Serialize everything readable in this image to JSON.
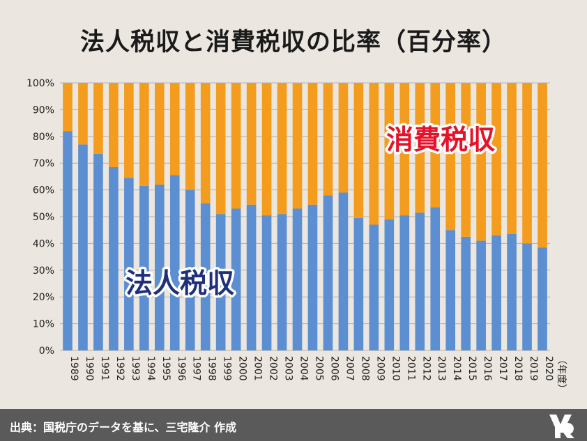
{
  "chart_data": {
    "type": "bar",
    "stacked": true,
    "title": "法人税収と消費税収の比率（百分率）",
    "xlabel": "（年度）",
    "ylabel": "",
    "ylim": [
      0,
      100
    ],
    "y_ticks": [
      "0%",
      "10%",
      "20%",
      "30%",
      "40%",
      "50%",
      "60%",
      "70%",
      "80%",
      "90%",
      "100%"
    ],
    "grid": true,
    "categories": [
      "1989",
      "1990",
      "1991",
      "1992",
      "1993",
      "1994",
      "1995",
      "1996",
      "1997",
      "1998",
      "1999",
      "2000",
      "2001",
      "2002",
      "2003",
      "2004",
      "2005",
      "2006",
      "2007",
      "2008",
      "2009",
      "2010",
      "2011",
      "2012",
      "2013",
      "2014",
      "2015",
      "2016",
      "2017",
      "2018",
      "2019",
      "2020"
    ],
    "series": [
      {
        "name": "法人税収",
        "color": "#5b8fd1",
        "values": [
          82,
          77,
          73.5,
          68.5,
          64.5,
          61.5,
          62,
          65.5,
          60,
          55,
          51,
          53,
          54.5,
          50.5,
          51,
          53,
          54.5,
          58,
          59,
          49.5,
          47,
          49,
          50.5,
          51.5,
          53.5,
          45,
          42.5,
          41,
          43,
          43.5,
          40,
          38.5
        ]
      },
      {
        "name": "消費税収",
        "color": "#f39c1d",
        "values": [
          18,
          23,
          26.5,
          31.5,
          35.5,
          38.5,
          38,
          34.5,
          40,
          45,
          49,
          47,
          45.5,
          49.5,
          49,
          47,
          45.5,
          42,
          41,
          50.5,
          53,
          51,
          49.5,
          48.5,
          46.5,
          55,
          57.5,
          59,
          57,
          56.5,
          60,
          61.5
        ]
      }
    ],
    "annotations": [
      {
        "text": "法人税収",
        "color": "#1f2f7a"
      },
      {
        "text": "消費税収",
        "color": "#e4132a"
      }
    ]
  },
  "footer": {
    "source": "出典：国税庁のデータを基に、三宅隆介 作成",
    "logo_icon": "logo-icon"
  }
}
